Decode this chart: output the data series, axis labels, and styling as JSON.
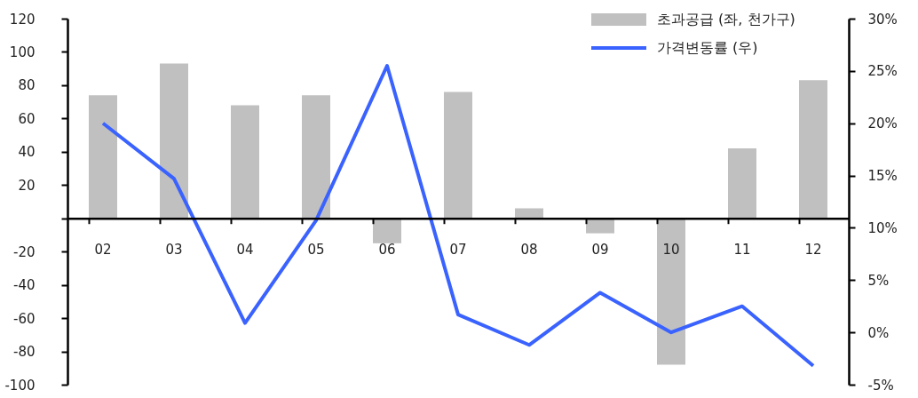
{
  "chart_data": {
    "type": "bar",
    "categories": [
      "02",
      "03",
      "04",
      "05",
      "06",
      "07",
      "08",
      "09",
      "10",
      "11",
      "12"
    ],
    "series": [
      {
        "name": "초과공급 (좌, 천가구)",
        "color": "#c0c0c0",
        "values": [
          74,
          93,
          68,
          74,
          -15,
          76,
          6,
          -9,
          -88,
          42,
          83
        ]
      },
      {
        "name": "가격변동률 (우)",
        "type": "line",
        "axis": "y2",
        "color": "#3a62ff",
        "values": [
          20,
          14.7,
          0.9,
          10.7,
          25.5,
          1.7,
          -1.2,
          3.8,
          0,
          2.5,
          -3.2
        ]
      }
    ],
    "ylim": [
      -100,
      120
    ],
    "yticks": [
      -100,
      -80,
      -60,
      -40,
      -20,
      {
        "value": 0,
        "label": null
      },
      20,
      40,
      60,
      80,
      100,
      120
    ],
    "y2lim": [
      -5,
      30
    ],
    "y2ticks": [
      {
        "value": -5,
        "label": "-5%"
      },
      {
        "value": 0,
        "label": "0%"
      },
      {
        "value": 5,
        "label": "5%"
      },
      {
        "value": 10,
        "label": "10%"
      },
      {
        "value": 15,
        "label": "15%"
      },
      {
        "value": 20,
        "label": "20%"
      },
      {
        "value": 25,
        "label": "25%"
      },
      {
        "value": 30,
        "label": "30%"
      }
    ],
    "grid": false,
    "legend": "top right",
    "marker": "none",
    "line_style": "solid"
  }
}
